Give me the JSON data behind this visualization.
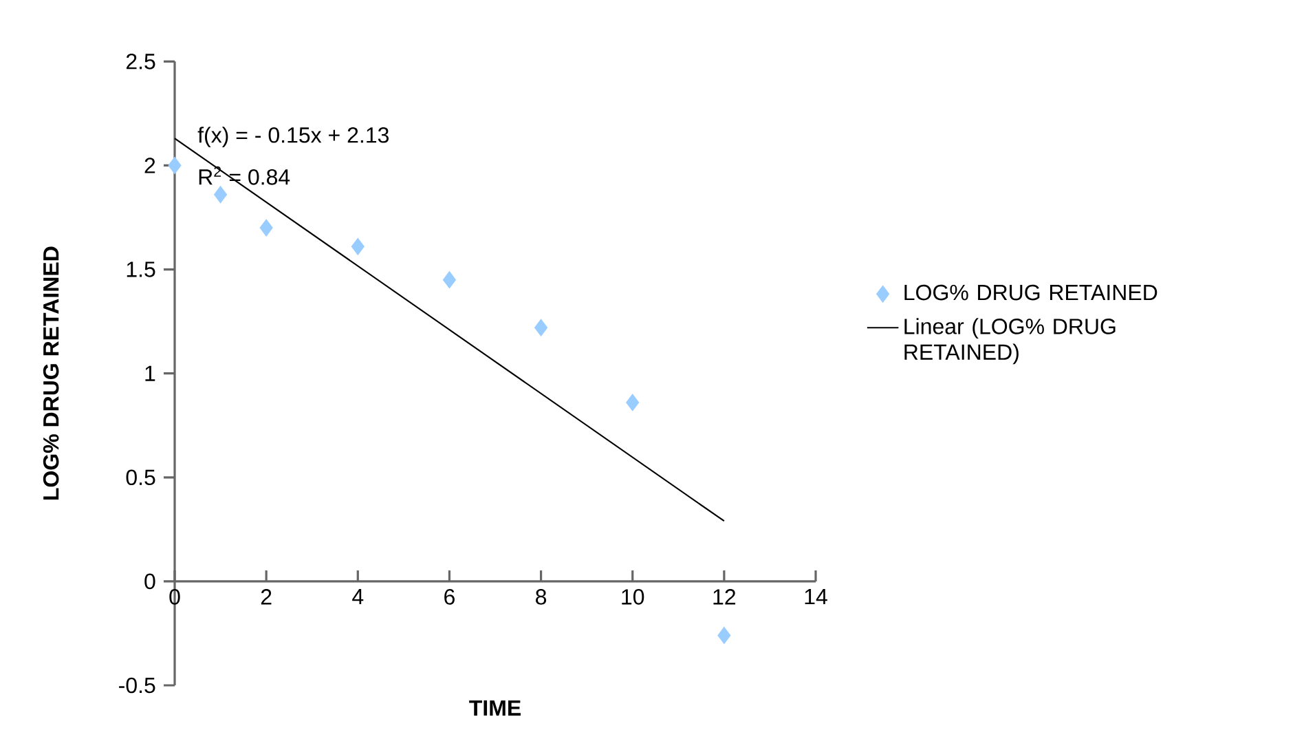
{
  "chart_data": {
    "type": "scatter",
    "xlabel": "TIME",
    "ylabel": "LOG% DRUG RETAINED",
    "annotations": [
      "f(x) =  - 0.15x + 2.13",
      "R$^{2}$ = 0.84"
    ],
    "x": [
      0,
      1,
      2,
      4,
      6,
      8,
      10,
      12
    ],
    "series": [
      {
        "name": "LOG% DRUG RETAINED",
        "color": "#99ccff",
        "values": [
          2.0,
          1.86,
          1.7,
          1.61,
          1.45,
          1.22,
          0.86,
          -0.26
        ],
        "marker": "diamond"
      },
      {
        "name": "Linear (LOG% DRUG RETAINED)",
        "type": "line",
        "color": "#000000",
        "x": [
          0,
          12
        ],
        "values": [
          2.13,
          0.29
        ],
        "marker": "none",
        "line_style": "solid"
      }
    ],
    "xlim": [
      0,
      14
    ],
    "xticks": [
      0,
      2,
      4,
      6,
      8,
      10,
      12,
      14
    ],
    "ylim": [
      -0.5,
      2.5
    ],
    "yticks": [
      -0.5,
      0,
      0.5,
      1,
      1.5,
      2,
      2.5
    ],
    "grid": false,
    "legend": "right"
  }
}
